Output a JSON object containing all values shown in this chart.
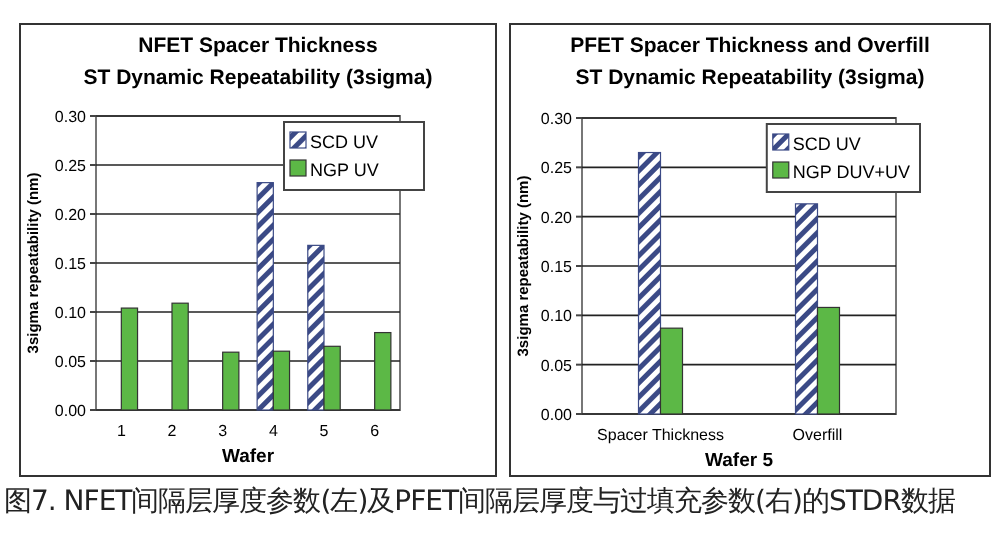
{
  "chart_data": [
    {
      "type": "bar",
      "title": "NFET Spacer Thickness\nST Dynamic Repeatability (3sigma)",
      "xlabel": "Wafer",
      "ylabel": "3sigma repeatability (nm)",
      "categories": [
        "1",
        "2",
        "3",
        "4",
        "5",
        "6"
      ],
      "series": [
        {
          "name": "SCD UV",
          "color": "#3b4a86",
          "values": [
            null,
            null,
            null,
            0.232,
            0.168,
            null
          ]
        },
        {
          "name": "NGP UV",
          "color": "#5cb846",
          "values": [
            0.104,
            0.109,
            0.059,
            0.06,
            0.065,
            0.079
          ]
        }
      ],
      "ylim": [
        0,
        0.3
      ],
      "yticks": [
        {
          "value": 0,
          "label": "0.00"
        },
        {
          "value": 0.05,
          "label": "0.05"
        },
        {
          "value": 0.1,
          "label": "0.10"
        },
        {
          "value": 0.15,
          "label": "0.15"
        },
        {
          "value": 0.2,
          "label": "0.20"
        },
        {
          "value": 0.25,
          "label": "0.25"
        },
        {
          "value": 0.3,
          "label": "0.30"
        }
      ],
      "grid": "y",
      "legend": "top right",
      "annotations": [
        "图7. NFET间隔层厚度参数(左)及PFET间隔层厚度与过填充参数(右)的STDR数据"
      ]
    },
    {
      "type": "bar",
      "title": "PFET Spacer Thickness and Overfill\nST Dynamic Repeatability (3sigma)",
      "xlabel": "Wafer 5",
      "ylabel": "3sigma repeatability (nm)",
      "categories": [
        "Spacer Thickness",
        "Overfill"
      ],
      "series": [
        {
          "name": "SCD UV",
          "color": "#3b4a86",
          "values": [
            0.265,
            0.213
          ]
        },
        {
          "name": "NGP DUV+UV",
          "color": "#5cb846",
          "values": [
            0.087,
            0.108
          ]
        }
      ],
      "ylim": [
        0,
        0.3
      ],
      "yticks": [
        {
          "value": 0,
          "label": "0.00"
        },
        {
          "value": 0.05,
          "label": "0.05"
        },
        {
          "value": 0.1,
          "label": "0.10"
        },
        {
          "value": 0.15,
          "label": "0.15"
        },
        {
          "value": 0.2,
          "label": "0.20"
        },
        {
          "value": 0.25,
          "label": "0.25"
        },
        {
          "value": 0.3,
          "label": "0.30"
        }
      ],
      "grid": "y",
      "legend": "top right"
    }
  ]
}
